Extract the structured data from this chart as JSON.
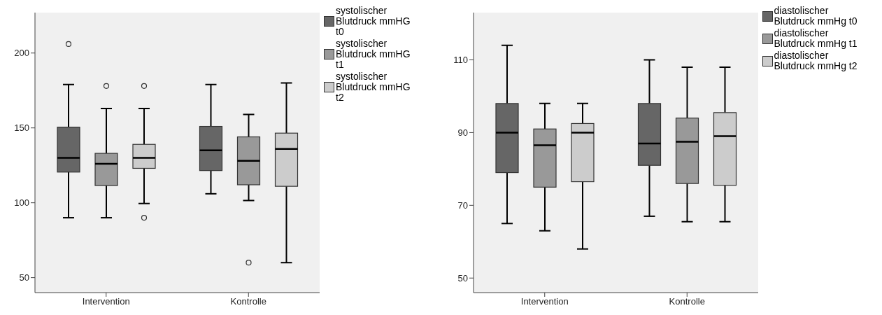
{
  "chart_data": [
    {
      "type": "box",
      "categories": [
        "Intervention",
        "Kontrolle"
      ],
      "ylim": [
        40,
        227
      ],
      "yticks": [
        50,
        100,
        150,
        200
      ],
      "grid": false,
      "legend": "right",
      "series": [
        {
          "name": "systolischer Blutdruck mmHG t0",
          "color": "#666666",
          "boxes": [
            {
              "low": 90,
              "q1": 120.5,
              "median": 130,
              "q3": 150.5,
              "high": 179,
              "outliers": [
                206
              ]
            },
            {
              "low": 106,
              "q1": 121.5,
              "median": 135,
              "q3": 151,
              "high": 179
            }
          ]
        },
        {
          "name": "systolischer Blutdruck mmHG t1",
          "color": "#999999",
          "boxes": [
            {
              "low": 90,
              "q1": 111.5,
              "median": 126,
              "q3": 133,
              "high": 163,
              "outliers": [
                178
              ]
            },
            {
              "low": 101.5,
              "q1": 112,
              "median": 128,
              "q3": 144,
              "high": 159,
              "outliers": [
                60
              ]
            }
          ]
        },
        {
          "name": "systolischer Blutdruck mmHG t2",
          "color": "#cccccc",
          "boxes": [
            {
              "low": 99.5,
              "q1": 123,
              "median": 130,
              "q3": 139,
              "high": 163,
              "outliers": [
                178,
                90
              ]
            },
            {
              "low": 60,
              "q1": 111,
              "median": 136,
              "q3": 146.5,
              "high": 180
            }
          ]
        }
      ]
    },
    {
      "type": "box",
      "categories": [
        "Intervention",
        "Kontrolle"
      ],
      "ylim": [
        46,
        123
      ],
      "yticks": [
        50,
        70,
        90,
        110
      ],
      "grid": false,
      "legend": "right",
      "series": [
        {
          "name": "diastolischer Blutdruck mmHg t0",
          "color": "#666666",
          "boxes": [
            {
              "low": 65,
              "q1": 79,
              "median": 90,
              "q3": 98,
              "high": 114
            },
            {
              "low": 67,
              "q1": 81,
              "median": 87,
              "q3": 98,
              "high": 110
            }
          ]
        },
        {
          "name": "diastolischer Blutdruck mmHg t1",
          "color": "#999999",
          "boxes": [
            {
              "low": 63,
              "q1": 75,
              "median": 86.5,
              "q3": 91,
              "high": 98
            },
            {
              "low": 65.5,
              "q1": 76,
              "median": 87.5,
              "q3": 94,
              "high": 108
            }
          ]
        },
        {
          "name": "diastolischer Blutdruck mmHg t2",
          "color": "#cccccc",
          "boxes": [
            {
              "low": 58,
              "q1": 76.5,
              "median": 90,
              "q3": 92.5,
              "high": 98
            },
            {
              "low": 65.5,
              "q1": 75.5,
              "median": 89,
              "q3": 95.5,
              "high": 108
            }
          ]
        }
      ]
    }
  ]
}
